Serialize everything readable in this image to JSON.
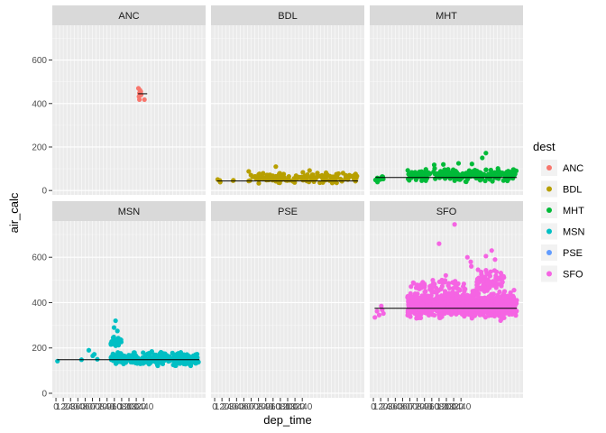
{
  "chart_data": {
    "type": "scatter",
    "facet_by": "dest",
    "facets": [
      "ANC",
      "BDL",
      "MHT",
      "MSN",
      "PSE",
      "SFO"
    ],
    "xlabel": "dep_time",
    "ylabel": "air_calc",
    "ylim": [
      -20,
      760
    ],
    "yticks": [
      0,
      200,
      400,
      600
    ],
    "xlim": [
      -60,
      2460
    ],
    "x_tick_labels": [
      "0",
      "120",
      "240",
      "360",
      "480",
      "600",
      "720",
      "840",
      "960",
      "1080",
      "1200",
      "1320",
      "1440"
    ],
    "x_tick_positions": [
      0,
      120,
      240,
      360,
      480,
      600,
      720,
      840,
      960,
      1080,
      1200,
      1320,
      1440
    ],
    "legend": {
      "title": "dest",
      "entries": [
        "ANC",
        "BDL",
        "MHT",
        "MSN",
        "PSE",
        "SFO"
      ]
    },
    "colors": {
      "ANC": "#F8766D",
      "BDL": "#B79F00",
      "MHT": "#00BA38",
      "MSN": "#00BFC4",
      "PSE": "#619CFF",
      "SFO": "#F564E3",
      "panel_bg": "#EBEBEB",
      "strip_bg": "#D9D9D9",
      "grid_major": "#FFFFFF"
    },
    "series": [
      {
        "name": "ANC",
        "mean": 445,
        "mean_x_range": [
          1350,
          1500
        ],
        "points": [
          [
            1356,
            470
          ],
          [
            1380,
            462
          ],
          [
            1372,
            448
          ],
          [
            1395,
            455
          ],
          [
            1364,
            432
          ],
          [
            1385,
            438
          ],
          [
            1372,
            418
          ],
          [
            1400,
            440
          ],
          [
            1455,
            418
          ]
        ]
      },
      {
        "name": "BDL",
        "mean": 44,
        "mean_x_range": [
          35,
          2358
        ],
        "clusters": [
          [
            35,
            105,
            30,
            55,
            5
          ],
          [
            300,
            330,
            40,
            50,
            2
          ],
          [
            550,
            2358,
            25,
            90,
            160
          ]
        ],
        "outliers": [
          [
            1005,
            110
          ],
          [
            560,
            88
          ],
          [
            1560,
            92
          ],
          [
            2110,
            80
          ]
        ]
      },
      {
        "name": "MHT",
        "mean": 60,
        "mean_x_range": [
          35,
          2358
        ],
        "clusters": [
          [
            35,
            170,
            35,
            75,
            12
          ],
          [
            550,
            2358,
            35,
            110,
            230
          ]
        ],
        "outliers": [
          [
            1150,
            120
          ],
          [
            1400,
            125
          ],
          [
            1850,
            172
          ],
          [
            1790,
            150
          ],
          [
            1000,
            118
          ],
          [
            1620,
            122
          ]
        ]
      },
      {
        "name": "MSN",
        "mean": 148,
        "mean_x_range": [
          20,
          2358
        ],
        "clusters": [
          [
            900,
            2358,
            110,
            190,
            280
          ],
          [
            900,
            1100,
            190,
            260,
            20
          ]
        ],
        "outliers": [
          [
            25,
            142
          ],
          [
            420,
            148
          ],
          [
            605,
            165
          ],
          [
            680,
            150
          ],
          [
            540,
            190
          ],
          [
            630,
            172
          ],
          [
            980,
            320
          ],
          [
            955,
            290
          ],
          [
            1010,
            275
          ],
          [
            940,
            245
          ]
        ]
      },
      {
        "name": "PSE",
        "mean": null,
        "points": []
      },
      {
        "name": "SFO",
        "mean": 375,
        "mean_x_range": [
          20,
          2358
        ],
        "clusters": [
          [
            560,
            2358,
            310,
            470,
            900
          ],
          [
            1700,
            2150,
            430,
            560,
            80
          ],
          [
            600,
            1500,
            440,
            520,
            50
          ]
        ],
        "outliers": [
          [
            25,
            335
          ],
          [
            60,
            362
          ],
          [
            95,
            345
          ],
          [
            130,
            385
          ],
          [
            165,
            352
          ],
          [
            145,
            368
          ],
          [
            1080,
            660
          ],
          [
            1335,
            745
          ],
          [
            1600,
            580
          ],
          [
            1720,
            545
          ],
          [
            1610,
            560
          ],
          [
            1545,
            600
          ],
          [
            1190,
            520
          ],
          [
            1945,
            630
          ],
          [
            1850,
            605
          ],
          [
            2000,
            590
          ]
        ]
      }
    ]
  }
}
